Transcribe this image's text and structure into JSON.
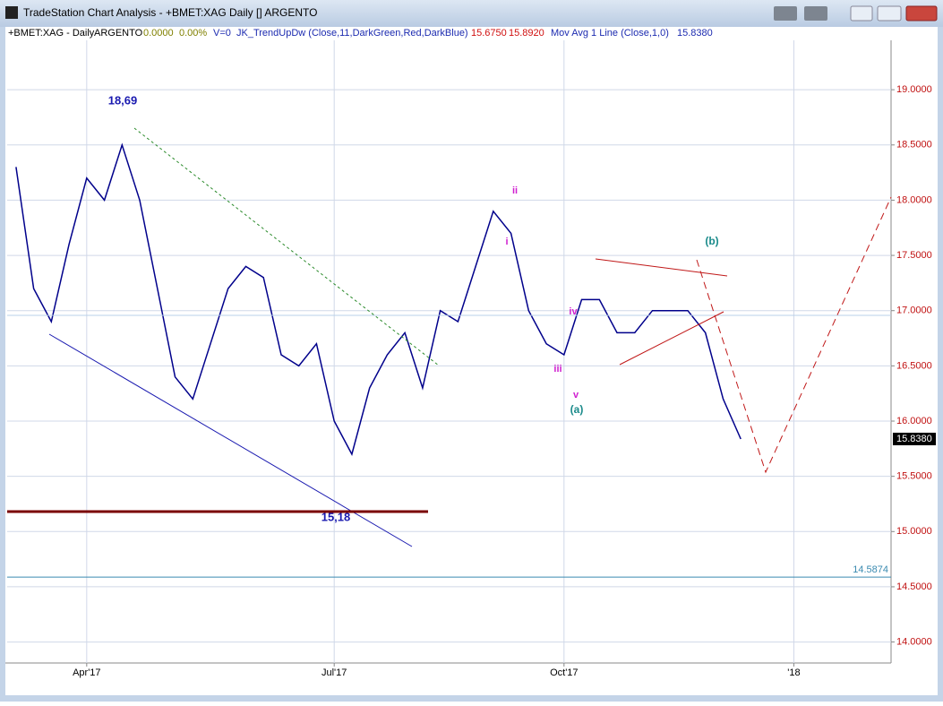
{
  "window": {
    "title": "TradeStation Chart Analysis - +BMET:XAG Daily [] ARGENTO"
  },
  "chart_data": {
    "type": "line",
    "header": [
      "+BMET:XAG - Daily",
      "ARGENTO",
      "0.0000",
      "0.00%",
      "V=0",
      "JK_TrendUpDw (Close,11,DarkGreen,Red,DarkBlue)",
      "15.6750",
      "15.8920",
      "Mov Avg 1 Line (Close,1,0)",
      "15.8380"
    ],
    "categories": [
      null,
      null,
      null,
      null,
      "Apr'17",
      null,
      null,
      null,
      null,
      null,
      null,
      null,
      null,
      null,
      null,
      null,
      null,
      null,
      "Jul'17",
      null,
      null,
      null,
      null,
      null,
      null,
      null,
      null,
      null,
      null,
      null,
      null,
      "Oct'17",
      null,
      null,
      null,
      null,
      null,
      null,
      null,
      null,
      null,
      null,
      null,
      null,
      "'18",
      null,
      null,
      null,
      null,
      null
    ],
    "values": [
      18.3,
      17.2,
      16.9,
      17.6,
      18.2,
      18.0,
      18.5,
      18.0,
      17.2,
      16.4,
      16.2,
      16.7,
      17.2,
      17.4,
      17.3,
      16.6,
      16.5,
      16.7,
      16.0,
      15.7,
      16.3,
      16.6,
      16.8,
      16.3,
      17.0,
      16.9,
      17.4,
      17.9,
      17.7,
      17.0,
      16.7,
      16.6,
      17.1,
      17.1,
      16.8,
      16.8,
      17.0,
      17.0,
      17.0,
      16.8,
      16.2,
      15.838,
      null,
      null,
      null,
      null,
      null,
      null,
      null,
      null
    ],
    "color": "#00008b",
    "ylim": [
      13.81,
      19.65
    ],
    "yticks": [
      {
        "value": 14,
        "label": "14.0000"
      },
      {
        "value": 14.5,
        "label": "14.5000"
      },
      {
        "value": 15,
        "label": "15.0000"
      },
      {
        "value": 15.5,
        "label": "15.5000"
      },
      {
        "value": 16,
        "label": "16.0000"
      },
      {
        "value": 16.5,
        "label": "16.5000"
      },
      {
        "value": 17,
        "label": "17.0000"
      },
      {
        "value": 17.5,
        "label": "17.5000"
      },
      {
        "value": 18,
        "label": "18.0000"
      },
      {
        "value": 18.5,
        "label": "18.5000"
      },
      {
        "value": 19,
        "label": "19.0000"
      }
    ],
    "grid": true,
    "last_price": {
      "value": 15.838,
      "label": "15.8380"
    },
    "ref_line": 14.5874,
    "annotations": [
      "18,69",
      "15,18",
      "i",
      "ii",
      "iii",
      "iv",
      "v",
      "(a)",
      "(b)"
    ]
  }
}
